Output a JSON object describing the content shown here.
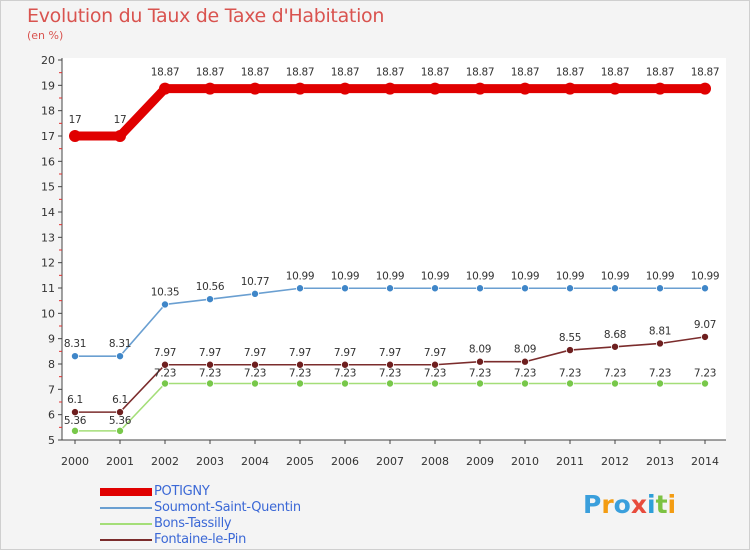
{
  "header": {
    "title": "Evolution du Taux de Taxe d'Habitation",
    "unit": "(en %)"
  },
  "logo": {
    "text": "Proxiti",
    "letters": [
      {
        "ch": "P",
        "color": "#3a9fdc"
      },
      {
        "ch": "r",
        "color": "#f39c12"
      },
      {
        "ch": "o",
        "color": "#3a9fdc"
      },
      {
        "ch": "x",
        "color": "#e84c3d"
      },
      {
        "ch": "i",
        "color": "#2e9fd8"
      },
      {
        "ch": "t",
        "color": "#7cc242"
      },
      {
        "ch": "i",
        "color": "#f39c12"
      }
    ]
  },
  "chart_data": {
    "type": "line",
    "title": "Evolution du Taux de Taxe d'Habitation",
    "ylabel": "(en %)",
    "xlabel": "",
    "ylim": [
      5,
      20
    ],
    "yticks": [
      "5",
      "6",
      "7",
      "8",
      "9",
      "10",
      "11",
      "12",
      "13",
      "14",
      "15",
      "16",
      "17",
      "18",
      "19",
      "20"
    ],
    "categories": [
      "2000",
      "2001",
      "2002",
      "2003",
      "2004",
      "2005",
      "2006",
      "2007",
      "2008",
      "2009",
      "2010",
      "2011",
      "2012",
      "2013",
      "2014"
    ],
    "grid": false,
    "legend_position": "bottom-left",
    "series": [
      {
        "name": "POTIGNY",
        "color": "#e00000",
        "marker": false,
        "values": [
          17,
          17,
          18.87,
          18.87,
          18.87,
          18.87,
          18.87,
          18.87,
          18.87,
          18.87,
          18.87,
          18.87,
          18.87,
          18.87,
          18.87
        ],
        "labels": [
          "17",
          "17",
          "18.87",
          "18.87",
          "18.87",
          "18.87",
          "18.87",
          "18.87",
          "18.87",
          "18.87",
          "18.87",
          "18.87",
          "18.87",
          "18.87",
          "18.87"
        ]
      },
      {
        "name": "Soumont-Saint-Quentin",
        "color": "#6a9fd1",
        "marker_color": "#3f86c8",
        "marker": true,
        "values": [
          8.31,
          8.31,
          10.35,
          10.56,
          10.77,
          10.99,
          10.99,
          10.99,
          10.99,
          10.99,
          10.99,
          10.99,
          10.99,
          10.99,
          10.99
        ],
        "labels": [
          "8.31",
          "8.31",
          "10.35",
          "10.56",
          "10.77",
          "10.99",
          "10.99",
          "10.99",
          "10.99",
          "10.99",
          "10.99",
          "10.99",
          "10.99",
          "10.99",
          "10.99"
        ]
      },
      {
        "name": "Bons-Tassilly",
        "color": "#a4de78",
        "marker_color": "#78c84a",
        "marker": true,
        "values": [
          5.36,
          5.36,
          7.23,
          7.23,
          7.23,
          7.23,
          7.23,
          7.23,
          7.23,
          7.23,
          7.23,
          7.23,
          7.23,
          7.23,
          7.23
        ],
        "labels": [
          "5.36",
          "5.36",
          "7.23",
          "7.23",
          "7.23",
          "7.23",
          "7.23",
          "7.23",
          "7.23",
          "7.23",
          "7.23",
          "7.23",
          "7.23",
          "7.23",
          "7.23"
        ]
      },
      {
        "name": "Fontaine-le-Pin",
        "color": "#7b2c2c",
        "marker_color": "#6e1f1f",
        "marker": true,
        "values": [
          6.1,
          6.1,
          7.97,
          7.97,
          7.97,
          7.97,
          7.97,
          7.97,
          7.97,
          8.09,
          8.09,
          8.55,
          8.68,
          8.81,
          9.07
        ],
        "labels": [
          "6.1",
          "6.1",
          "7.97",
          "7.97",
          "7.97",
          "7.97",
          "7.97",
          "7.97",
          "7.97",
          "8.09",
          "8.09",
          "8.55",
          "8.68",
          "8.81",
          "9.07"
        ]
      }
    ]
  }
}
